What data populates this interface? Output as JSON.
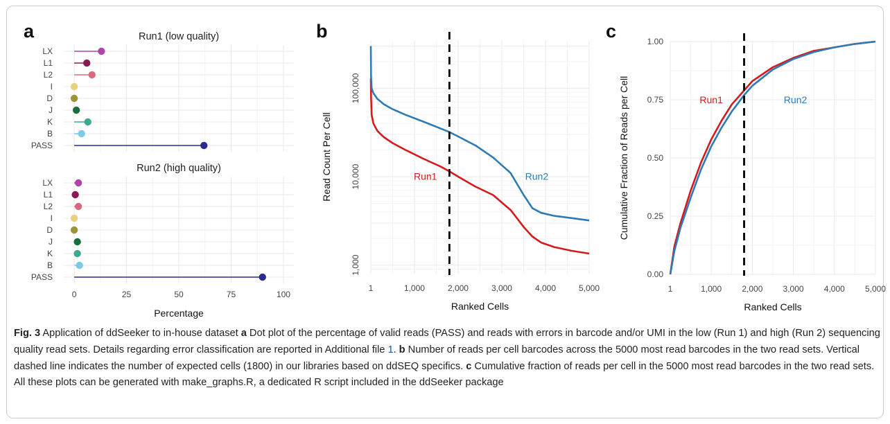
{
  "figure": {
    "panels": {
      "a": "a",
      "b": "b",
      "c": "c"
    }
  },
  "chart_data": [
    {
      "panel": "a",
      "type": "scatter",
      "subtype": "dot plot (lollipop)",
      "facets": [
        {
          "title": "Run1 (low quality)",
          "categories": [
            "LX",
            "L1",
            "L2",
            "I",
            "D",
            "J",
            "K",
            "B",
            "PASS"
          ],
          "values": [
            13,
            6,
            8.5,
            0,
            0,
            1,
            6.5,
            3.5,
            62
          ]
        },
        {
          "title": "Run2 (high quality)",
          "categories": [
            "LX",
            "L1",
            "L2",
            "I",
            "D",
            "J",
            "K",
            "B",
            "PASS"
          ],
          "values": [
            2,
            0.5,
            2,
            0,
            0,
            1.5,
            1.5,
            2.5,
            90
          ]
        }
      ],
      "category_colors": {
        "LX": "#b144a8",
        "L1": "#8a1a52",
        "L2": "#d86a7e",
        "I": "#e9d07c",
        "D": "#9c9436",
        "J": "#1b6e3c",
        "K": "#3fa892",
        "B": "#7cc9e8",
        "PASS": "#2b2b8f"
      },
      "xlabel": "Percentage",
      "xlim": [
        -5,
        105
      ],
      "xticks": [
        0,
        25,
        50,
        75,
        100
      ],
      "grid": true
    },
    {
      "panel": "b",
      "type": "line",
      "xlabel": "Ranked Cells",
      "ylabel": "Read Count Per Cell",
      "yscale": "log",
      "xlim": [
        1,
        5000
      ],
      "ylim": [
        800,
        350000
      ],
      "xticks": [
        1,
        1000,
        2000,
        3000,
        4000,
        5000
      ],
      "xtick_labels": [
        "1",
        "1,000",
        "2,000",
        "3,000",
        "4,000",
        "5,000"
      ],
      "yticks": [
        1000,
        10000,
        100000
      ],
      "ytick_labels": [
        "1,000",
        "10,000",
        "100,000"
      ],
      "vline": 1800,
      "series": [
        {
          "name": "Run1",
          "color": "#d7191c",
          "x": [
            1,
            5,
            20,
            60,
            150,
            300,
            500,
            800,
            1200,
            1600,
            1800,
            2000,
            2400,
            2800,
            3200,
            3500,
            3700,
            3900,
            4200,
            4600,
            5000
          ],
          "y": [
            130000,
            80000,
            50000,
            40000,
            33000,
            28000,
            24000,
            20000,
            16000,
            13000,
            11500,
            10000,
            7700,
            6200,
            4200,
            2700,
            2100,
            1800,
            1600,
            1450,
            1350
          ]
        },
        {
          "name": "Run2",
          "color": "#2c7bb6",
          "x": [
            1,
            5,
            20,
            60,
            150,
            300,
            500,
            800,
            1200,
            1600,
            1800,
            2000,
            2400,
            2800,
            3200,
            3500,
            3700,
            3900,
            4200,
            4600,
            5000
          ],
          "y": [
            300000,
            140000,
            100000,
            88000,
            76000,
            66000,
            58000,
            50000,
            42000,
            35000,
            32000,
            28500,
            22500,
            16500,
            11000,
            6200,
            4400,
            3900,
            3600,
            3400,
            3200
          ]
        }
      ],
      "grid": true
    },
    {
      "panel": "c",
      "type": "line",
      "xlabel": "Ranked Cells",
      "ylabel": "Cumulative Fraction of Reads per Cell",
      "xlim": [
        1,
        5000
      ],
      "ylim": [
        0,
        1
      ],
      "xticks": [
        1,
        1000,
        2000,
        3000,
        4000,
        5000
      ],
      "xtick_labels": [
        "1",
        "1,000",
        "2,000",
        "3,000",
        "4,000",
        "5,000"
      ],
      "yticks": [
        0,
        0.25,
        0.5,
        0.75,
        1
      ],
      "ytick_labels": [
        "0.00",
        "0.25",
        "0.50",
        "0.75",
        "1.00"
      ],
      "vline": 1800,
      "series": [
        {
          "name": "Run1",
          "color": "#d7191c",
          "x": [
            1,
            100,
            250,
            500,
            750,
            1000,
            1250,
            1500,
            1800,
            2000,
            2500,
            3000,
            3500,
            4000,
            4500,
            5000
          ],
          "y": [
            0,
            0.12,
            0.22,
            0.36,
            0.48,
            0.58,
            0.66,
            0.73,
            0.79,
            0.83,
            0.89,
            0.93,
            0.96,
            0.975,
            0.99,
            1.0
          ]
        },
        {
          "name": "Run2",
          "color": "#2c7bb6",
          "x": [
            1,
            100,
            250,
            500,
            750,
            1000,
            1250,
            1500,
            1800,
            2000,
            2500,
            3000,
            3500,
            4000,
            4500,
            5000
          ],
          "y": [
            0,
            0.1,
            0.2,
            0.33,
            0.45,
            0.55,
            0.63,
            0.7,
            0.77,
            0.81,
            0.88,
            0.925,
            0.955,
            0.975,
            0.99,
            1.0
          ]
        }
      ],
      "grid": true
    }
  ],
  "caption": {
    "label": "Fig. 3",
    "intro": " Application of ddSeeker to in-house dataset ",
    "a_letter": "a",
    "a_text": " Dot plot of the percentage of valid reads (PASS) and reads with errors in barcode and/or UMI in the low (Run 1) and high (Run 2) sequencing quality read sets. Details regarding error classification are reported in Additional file ",
    "ref": "1",
    "a_end": ". ",
    "b_letter": "b",
    "b_text": " Number of reads per cell barcodes across the 5000 most read barcodes in the two read sets. Vertical dashed line indicates the number of expected cells (1800) in our libraries based on ddSEQ specifics. ",
    "c_letter": "c",
    "c_text": " Cumulative fraction of reads per cell in the 5000 most read barcodes in the two read sets. All these plots can be generated with make_graphs.R, a dedicated R script included in the ddSeeker package"
  }
}
